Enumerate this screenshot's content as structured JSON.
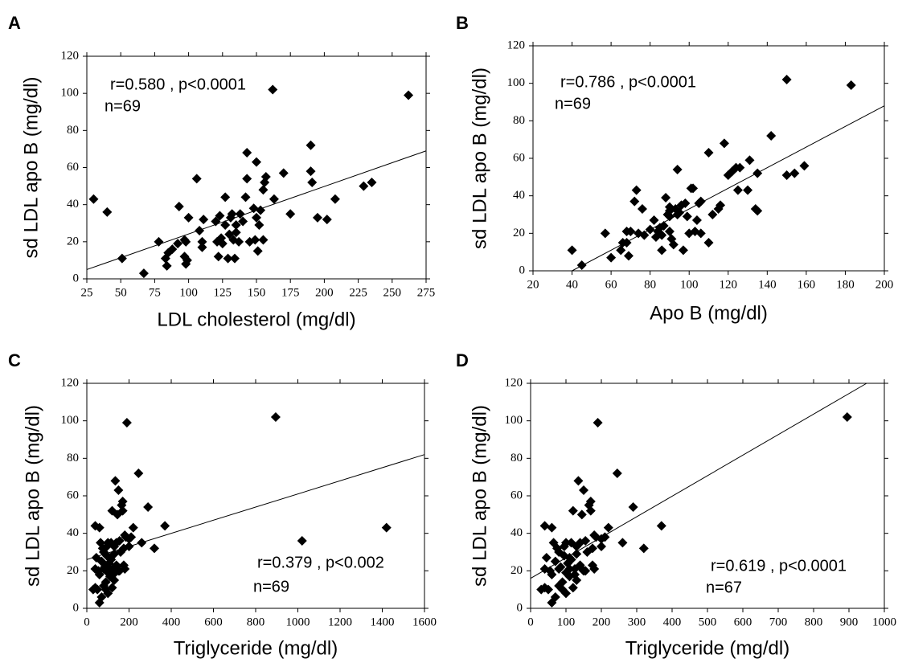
{
  "chart_data": [
    {
      "type": "scatter",
      "panel": "A",
      "xlabel": "LDL cholesterol (mg/dl)",
      "ylabel": "sd LDL apo B (mg/dl)",
      "annotations": [
        "r=0.580 , p<0.0001",
        "n=69"
      ],
      "color": "#000000",
      "xlim": [
        25,
        275
      ],
      "xticks": [
        25,
        50,
        75,
        100,
        125,
        150,
        175,
        200,
        225,
        250,
        275
      ],
      "ylim": [
        0,
        120
      ],
      "yticks": [
        0,
        20,
        40,
        60,
        80,
        100,
        120
      ],
      "x": [
        30,
        40,
        51,
        67,
        78,
        83,
        84,
        85,
        88,
        92,
        93,
        97,
        97,
        98,
        98,
        99,
        100,
        106,
        108,
        110,
        110,
        111,
        120,
        121,
        122,
        123,
        124,
        125,
        127,
        127,
        129,
        130,
        131,
        132,
        133,
        134,
        135,
        137,
        138,
        140,
        142,
        143,
        143,
        145,
        148,
        149,
        150,
        150,
        151,
        152,
        153,
        155,
        155,
        156,
        157,
        162,
        163,
        170,
        175,
        190,
        190,
        191,
        195,
        202,
        208,
        229,
        235,
        262,
        135
      ],
      "values": [
        43,
        36,
        11,
        3,
        20,
        11,
        7,
        14,
        16,
        19,
        39,
        21,
        12,
        8,
        20,
        10,
        33,
        54,
        26,
        20,
        17,
        32,
        31,
        20,
        12,
        34,
        22,
        19,
        44,
        29,
        11,
        24,
        33,
        35,
        21,
        11,
        25,
        20,
        35,
        31,
        44,
        68,
        54,
        20,
        38,
        21,
        63,
        33,
        15,
        29,
        37,
        48,
        21,
        52,
        55,
        102,
        43,
        57,
        35,
        58,
        72,
        52,
        33,
        32,
        43,
        50,
        52,
        99,
        29
      ],
      "trendline": {
        "x": [
          25,
          275
        ],
        "y": [
          5,
          69
        ]
      }
    },
    {
      "type": "scatter",
      "panel": "B",
      "xlabel": "Apo B (mg/dl)",
      "ylabel": "sd LDL apo B (mg/dl)",
      "annotations": [
        "r=0.786 , p<0.0001",
        "n=69"
      ],
      "color": "#000000",
      "xlim": [
        20,
        200
      ],
      "xticks": [
        20,
        40,
        60,
        80,
        100,
        120,
        140,
        160,
        180,
        200
      ],
      "ylim": [
        0,
        120
      ],
      "yticks": [
        0,
        20,
        40,
        60,
        80,
        100,
        120
      ],
      "x": [
        40,
        45,
        57,
        60,
        65,
        66,
        68,
        68,
        69,
        70,
        72,
        73,
        74,
        76,
        77,
        80,
        82,
        83,
        84,
        85,
        86,
        86,
        87,
        88,
        89,
        90,
        90,
        90,
        91,
        92,
        93,
        94,
        94,
        95,
        96,
        97,
        98,
        99,
        100,
        101,
        102,
        103,
        104,
        105,
        106,
        106,
        110,
        110,
        112,
        115,
        116,
        118,
        120,
        122,
        124,
        125,
        126,
        130,
        131,
        134,
        135,
        135,
        142,
        150,
        150,
        154,
        159,
        183,
        90
      ],
      "values": [
        11,
        3,
        20,
        7,
        11,
        15,
        15,
        21,
        8,
        21,
        37,
        43,
        20,
        33,
        19,
        22,
        27,
        18,
        21,
        23,
        11,
        19,
        24,
        39,
        30,
        21,
        29,
        34,
        17,
        14,
        33,
        54,
        30,
        31,
        35,
        11,
        36,
        29,
        20,
        44,
        44,
        21,
        27,
        36,
        37,
        20,
        63,
        15,
        30,
        33,
        35,
        68,
        51,
        53,
        55,
        43,
        55,
        43,
        59,
        33,
        52,
        32,
        72,
        102,
        51,
        52,
        56,
        99,
        32
      ],
      "trendline": {
        "x": [
          40,
          200
        ],
        "y": [
          0,
          88
        ]
      }
    },
    {
      "type": "scatter",
      "panel": "C",
      "xlabel": "Triglyceride (mg/dl)",
      "ylabel": "sd LDL apo B (mg/dl)",
      "annotations": [
        "r=0.379 , p<0.002",
        "n=69"
      ],
      "color": "#000000",
      "xlim": [
        0,
        1600
      ],
      "xticks": [
        0,
        200,
        400,
        600,
        800,
        1000,
        1200,
        1400,
        1600
      ],
      "ylim": [
        0,
        120
      ],
      "yticks": [
        0,
        20,
        40,
        60,
        80,
        100,
        120
      ],
      "x": [
        30,
        40,
        40,
        45,
        50,
        55,
        60,
        60,
        65,
        70,
        75,
        80,
        80,
        85,
        90,
        90,
        95,
        100,
        100,
        105,
        110,
        110,
        115,
        120,
        120,
        125,
        130,
        130,
        135,
        140,
        140,
        145,
        150,
        155,
        160,
        165,
        170,
        170,
        175,
        180,
        180,
        185,
        190,
        200,
        210,
        220,
        245,
        260,
        290,
        320,
        370,
        895,
        1020,
        1420,
        60,
        70,
        95,
        100,
        115,
        125,
        150,
        155,
        175,
        200,
        140,
        80,
        110,
        130,
        40
      ],
      "values": [
        10,
        44,
        21,
        27,
        10,
        20,
        43,
        3,
        35,
        6,
        32,
        30,
        21,
        22,
        10,
        14,
        33,
        8,
        19,
        24,
        21,
        27,
        35,
        52,
        11,
        18,
        29,
        15,
        68,
        22,
        23,
        50,
        63,
        20,
        30,
        55,
        57,
        52,
        32,
        21,
        39,
        38,
        99,
        37,
        38,
        43,
        72,
        35,
        54,
        32,
        44,
        102,
        36,
        43,
        18,
        25,
        28,
        35,
        26,
        21,
        20,
        36,
        23,
        33,
        35,
        12,
        17,
        33,
        11
      ],
      "trendline": {
        "x": [
          0,
          1600
        ],
        "y": [
          26,
          82
        ]
      }
    },
    {
      "type": "scatter",
      "panel": "D",
      "xlabel": "Triglyceride (mg/dl)",
      "ylabel": "sd LDL apo B (mg/dl)",
      "annotations": [
        "r=0.619 , p<0.0001",
        "n=67"
      ],
      "color": "#000000",
      "xlim": [
        0,
        1000
      ],
      "xticks": [
        0,
        100,
        200,
        300,
        400,
        500,
        600,
        700,
        800,
        900,
        1000
      ],
      "ylim": [
        0,
        120
      ],
      "yticks": [
        0,
        20,
        40,
        60,
        80,
        100,
        120
      ],
      "x": [
        30,
        40,
        40,
        45,
        50,
        55,
        60,
        60,
        65,
        70,
        75,
        80,
        80,
        85,
        90,
        90,
        95,
        100,
        100,
        105,
        110,
        110,
        115,
        120,
        120,
        125,
        130,
        130,
        135,
        140,
        140,
        145,
        150,
        155,
        160,
        165,
        170,
        170,
        175,
        180,
        180,
        185,
        190,
        200,
        210,
        220,
        245,
        260,
        290,
        320,
        370,
        895,
        60,
        70,
        95,
        100,
        115,
        125,
        150,
        155,
        175,
        200,
        140,
        80,
        110,
        130,
        40
      ],
      "values": [
        10,
        44,
        21,
        27,
        10,
        20,
        43,
        3,
        35,
        6,
        32,
        30,
        21,
        22,
        10,
        14,
        33,
        8,
        19,
        24,
        21,
        27,
        35,
        52,
        11,
        18,
        29,
        15,
        68,
        22,
        23,
        50,
        63,
        20,
        30,
        55,
        57,
        52,
        32,
        21,
        39,
        38,
        99,
        37,
        38,
        43,
        72,
        35,
        54,
        32,
        44,
        102,
        18,
        25,
        28,
        35,
        26,
        21,
        20,
        36,
        23,
        33,
        35,
        12,
        17,
        33,
        11
      ],
      "trendline": {
        "x": [
          0,
          950
        ],
        "y": [
          16,
          120
        ]
      }
    }
  ]
}
